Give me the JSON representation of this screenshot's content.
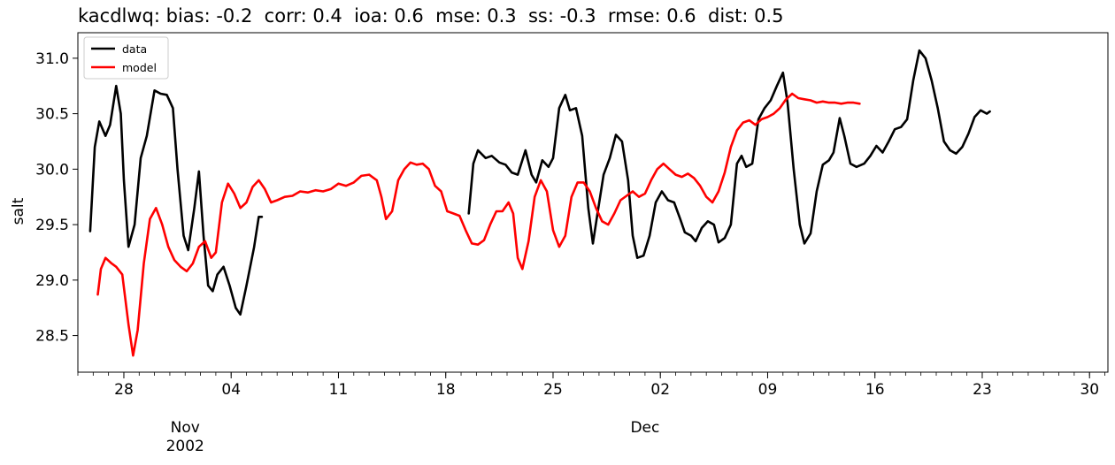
{
  "title": "kacdlwq: bias: -0.2  corr: 0.4  ioa: 0.6  mse: 0.3  ss: -0.3  rmse: 0.6  dist: 0.5",
  "chart_data": {
    "type": "line",
    "title": "kacdlwq: bias: -0.2  corr: 0.4  ioa: 0.6  mse: 0.3  ss: -0.3  rmse: 0.6  dist: 0.5",
    "xlabel": "",
    "ylabel": "salt",
    "x_unit": "days since 2002-10-01",
    "xlim": [
      24.0,
      91.2
    ],
    "ylim": [
      28.17,
      31.23
    ],
    "y_ticks": [
      28.5,
      29.0,
      29.5,
      30.0,
      30.5,
      31.0
    ],
    "y_tick_labels": [
      "28.5",
      "29.0",
      "29.5",
      "30.0",
      "30.5",
      "31.0"
    ],
    "x_major_ticks": [
      {
        "x": 27,
        "label": "28"
      },
      {
        "x": 34,
        "label": "04"
      },
      {
        "x": 41,
        "label": "11"
      },
      {
        "x": 48,
        "label": "18"
      },
      {
        "x": 55,
        "label": "25"
      },
      {
        "x": 62,
        "label": "02"
      },
      {
        "x": 69,
        "label": "09"
      },
      {
        "x": 76,
        "label": "16"
      },
      {
        "x": 83,
        "label": "23"
      },
      {
        "x": 90,
        "label": "30"
      }
    ],
    "x_secondary_labels": [
      {
        "x": 31,
        "label": "Nov\n2002"
      },
      {
        "x": 61,
        "label": "Dec"
      }
    ],
    "x_minor_start": 24,
    "x_minor_end": 91,
    "grid": false,
    "legend": {
      "placement": "top-left",
      "entries": [
        "data",
        "model"
      ]
    },
    "series": [
      {
        "name": "data",
        "color": "#000000",
        "segments": [
          [
            [
              24.8,
              29.44
            ],
            [
              25.1,
              30.2
            ],
            [
              25.4,
              30.43
            ],
            [
              25.8,
              30.3
            ],
            [
              26.1,
              30.4
            ],
            [
              26.5,
              30.75
            ],
            [
              26.8,
              30.5
            ],
            [
              27.0,
              29.9
            ],
            [
              27.3,
              29.3
            ],
            [
              27.7,
              29.5
            ],
            [
              28.1,
              30.1
            ],
            [
              28.5,
              30.3
            ],
            [
              29.0,
              30.71
            ],
            [
              29.4,
              30.68
            ],
            [
              29.8,
              30.67
            ],
            [
              30.2,
              30.55
            ],
            [
              30.5,
              30.0
            ],
            [
              30.9,
              29.4
            ],
            [
              31.2,
              29.27
            ],
            [
              31.6,
              29.65
            ],
            [
              31.9,
              29.98
            ],
            [
              32.2,
              29.4
            ],
            [
              32.5,
              28.95
            ],
            [
              32.8,
              28.9
            ],
            [
              33.1,
              29.05
            ],
            [
              33.5,
              29.12
            ],
            [
              33.9,
              28.95
            ],
            [
              34.3,
              28.75
            ],
            [
              34.6,
              28.69
            ],
            [
              35.0,
              28.95
            ],
            [
              35.5,
              29.3
            ],
            [
              35.8,
              29.57
            ],
            [
              36.0,
              29.57
            ]
          ],
          [
            [
              49.5,
              29.6
            ],
            [
              49.8,
              30.05
            ],
            [
              50.1,
              30.17
            ],
            [
              50.6,
              30.1
            ],
            [
              51.0,
              30.12
            ],
            [
              51.5,
              30.06
            ],
            [
              51.9,
              30.04
            ],
            [
              52.3,
              29.97
            ],
            [
              52.7,
              29.95
            ],
            [
              53.2,
              30.17
            ],
            [
              53.6,
              29.95
            ],
            [
              53.9,
              29.88
            ],
            [
              54.3,
              30.08
            ],
            [
              54.7,
              30.02
            ],
            [
              55.0,
              30.1
            ],
            [
              55.4,
              30.55
            ],
            [
              55.8,
              30.67
            ],
            [
              56.1,
              30.53
            ],
            [
              56.5,
              30.55
            ],
            [
              56.9,
              30.3
            ],
            [
              57.3,
              29.65
            ],
            [
              57.6,
              29.33
            ],
            [
              57.9,
              29.6
            ],
            [
              58.3,
              29.95
            ],
            [
              58.7,
              30.1
            ],
            [
              59.1,
              30.31
            ],
            [
              59.5,
              30.25
            ],
            [
              59.9,
              29.9
            ],
            [
              60.2,
              29.4
            ],
            [
              60.5,
              29.2
            ],
            [
              60.9,
              29.22
            ],
            [
              61.3,
              29.4
            ],
            [
              61.7,
              29.7
            ],
            [
              62.1,
              29.8
            ],
            [
              62.5,
              29.72
            ],
            [
              62.9,
              29.7
            ],
            [
              63.3,
              29.55
            ],
            [
              63.6,
              29.43
            ],
            [
              64.0,
              29.4
            ],
            [
              64.3,
              29.35
            ],
            [
              64.7,
              29.47
            ],
            [
              65.1,
              29.53
            ],
            [
              65.5,
              29.5
            ],
            [
              65.8,
              29.34
            ],
            [
              66.2,
              29.38
            ],
            [
              66.6,
              29.5
            ],
            [
              67.0,
              30.05
            ],
            [
              67.3,
              30.12
            ],
            [
              67.6,
              30.02
            ],
            [
              68.0,
              30.05
            ],
            [
              68.4,
              30.45
            ],
            [
              68.8,
              30.55
            ],
            [
              69.2,
              30.62
            ],
            [
              69.6,
              30.75
            ],
            [
              70.0,
              30.87
            ],
            [
              70.3,
              30.6
            ],
            [
              70.7,
              30.0
            ],
            [
              71.1,
              29.5
            ],
            [
              71.4,
              29.33
            ],
            [
              71.8,
              29.42
            ],
            [
              72.2,
              29.8
            ],
            [
              72.6,
              30.04
            ],
            [
              73.0,
              30.08
            ],
            [
              73.3,
              30.15
            ],
            [
              73.7,
              30.46
            ],
            [
              74.0,
              30.3
            ],
            [
              74.4,
              30.05
            ],
            [
              74.8,
              30.02
            ],
            [
              75.3,
              30.05
            ],
            [
              75.7,
              30.12
            ],
            [
              76.1,
              30.21
            ],
            [
              76.5,
              30.15
            ],
            [
              76.9,
              30.25
            ],
            [
              77.3,
              30.36
            ],
            [
              77.7,
              30.38
            ],
            [
              78.1,
              30.45
            ],
            [
              78.5,
              30.8
            ],
            [
              78.9,
              31.07
            ],
            [
              79.3,
              31.0
            ],
            [
              79.7,
              30.8
            ],
            [
              80.1,
              30.55
            ],
            [
              80.5,
              30.25
            ],
            [
              80.9,
              30.17
            ],
            [
              81.3,
              30.14
            ],
            [
              81.7,
              30.2
            ],
            [
              82.1,
              30.32
            ],
            [
              82.5,
              30.47
            ],
            [
              82.9,
              30.53
            ],
            [
              83.3,
              30.5
            ],
            [
              83.5,
              30.52
            ]
          ]
        ]
      },
      {
        "name": "model",
        "color": "#ff0000",
        "segments": [
          [
            [
              25.3,
              28.87
            ],
            [
              25.5,
              29.1
            ],
            [
              25.8,
              29.2
            ],
            [
              26.2,
              29.15
            ],
            [
              26.5,
              29.12
            ],
            [
              26.9,
              29.05
            ],
            [
              27.3,
              28.6
            ],
            [
              27.6,
              28.32
            ],
            [
              27.9,
              28.55
            ],
            [
              28.3,
              29.15
            ],
            [
              28.7,
              29.55
            ],
            [
              29.1,
              29.65
            ],
            [
              29.5,
              29.5
            ],
            [
              29.9,
              29.3
            ],
            [
              30.3,
              29.18
            ],
            [
              30.7,
              29.12
            ],
            [
              31.1,
              29.08
            ],
            [
              31.5,
              29.15
            ],
            [
              31.9,
              29.3
            ],
            [
              32.3,
              29.35
            ],
            [
              32.7,
              29.2
            ],
            [
              33.0,
              29.25
            ],
            [
              33.4,
              29.7
            ],
            [
              33.8,
              29.87
            ],
            [
              34.2,
              29.78
            ],
            [
              34.6,
              29.65
            ],
            [
              35.0,
              29.7
            ],
            [
              35.4,
              29.84
            ],
            [
              35.8,
              29.9
            ],
            [
              36.2,
              29.82
            ],
            [
              36.6,
              29.7
            ],
            [
              37.0,
              29.72
            ],
            [
              37.5,
              29.75
            ],
            [
              38.0,
              29.76
            ],
            [
              38.5,
              29.8
            ],
            [
              39.0,
              29.79
            ],
            [
              39.5,
              29.81
            ],
            [
              40.0,
              29.8
            ],
            [
              40.5,
              29.82
            ],
            [
              41.0,
              29.87
            ],
            [
              41.5,
              29.85
            ],
            [
              42.0,
              29.88
            ],
            [
              42.5,
              29.94
            ],
            [
              43.0,
              29.95
            ],
            [
              43.5,
              29.9
            ],
            [
              43.8,
              29.75
            ],
            [
              44.1,
              29.55
            ],
            [
              44.5,
              29.62
            ],
            [
              44.9,
              29.9
            ],
            [
              45.3,
              30.0
            ],
            [
              45.7,
              30.06
            ],
            [
              46.1,
              30.04
            ],
            [
              46.5,
              30.05
            ],
            [
              46.9,
              30.0
            ],
            [
              47.3,
              29.85
            ],
            [
              47.7,
              29.8
            ],
            [
              48.1,
              29.62
            ],
            [
              48.5,
              29.6
            ],
            [
              48.9,
              29.58
            ],
            [
              49.3,
              29.45
            ],
            [
              49.7,
              29.33
            ],
            [
              50.1,
              29.32
            ],
            [
              50.5,
              29.36
            ],
            [
              50.9,
              29.5
            ],
            [
              51.3,
              29.62
            ],
            [
              51.7,
              29.62
            ],
            [
              52.1,
              29.7
            ],
            [
              52.4,
              29.6
            ],
            [
              52.7,
              29.2
            ],
            [
              53.0,
              29.1
            ],
            [
              53.4,
              29.35
            ],
            [
              53.8,
              29.75
            ],
            [
              54.2,
              29.9
            ],
            [
              54.6,
              29.8
            ],
            [
              55.0,
              29.45
            ],
            [
              55.4,
              29.3
            ],
            [
              55.8,
              29.4
            ],
            [
              56.2,
              29.75
            ],
            [
              56.6,
              29.88
            ],
            [
              57.0,
              29.88
            ],
            [
              57.4,
              29.8
            ],
            [
              57.8,
              29.65
            ],
            [
              58.2,
              29.53
            ],
            [
              58.6,
              29.5
            ],
            [
              59.0,
              29.6
            ],
            [
              59.4,
              29.72
            ],
            [
              59.8,
              29.76
            ],
            [
              60.2,
              29.8
            ],
            [
              60.6,
              29.75
            ],
            [
              61.0,
              29.78
            ],
            [
              61.4,
              29.9
            ],
            [
              61.8,
              30.0
            ],
            [
              62.2,
              30.05
            ],
            [
              62.6,
              30.0
            ],
            [
              63.0,
              29.95
            ],
            [
              63.4,
              29.93
            ],
            [
              63.8,
              29.96
            ],
            [
              64.2,
              29.92
            ],
            [
              64.6,
              29.85
            ],
            [
              65.0,
              29.75
            ],
            [
              65.4,
              29.7
            ],
            [
              65.8,
              29.8
            ],
            [
              66.2,
              29.97
            ],
            [
              66.6,
              30.2
            ],
            [
              67.0,
              30.35
            ],
            [
              67.4,
              30.42
            ],
            [
              67.8,
              30.44
            ],
            [
              68.2,
              30.4
            ],
            [
              68.6,
              30.45
            ],
            [
              69.0,
              30.47
            ],
            [
              69.4,
              30.5
            ],
            [
              69.8,
              30.55
            ],
            [
              70.2,
              30.63
            ],
            [
              70.6,
              30.68
            ],
            [
              71.0,
              30.64
            ],
            [
              71.4,
              30.63
            ],
            [
              71.8,
              30.62
            ],
            [
              72.2,
              30.6
            ],
            [
              72.6,
              30.61
            ],
            [
              73.0,
              30.6
            ],
            [
              73.4,
              30.6
            ],
            [
              73.8,
              30.59
            ],
            [
              74.2,
              30.6
            ],
            [
              74.6,
              30.6
            ],
            [
              75.0,
              30.59
            ]
          ]
        ]
      }
    ]
  }
}
